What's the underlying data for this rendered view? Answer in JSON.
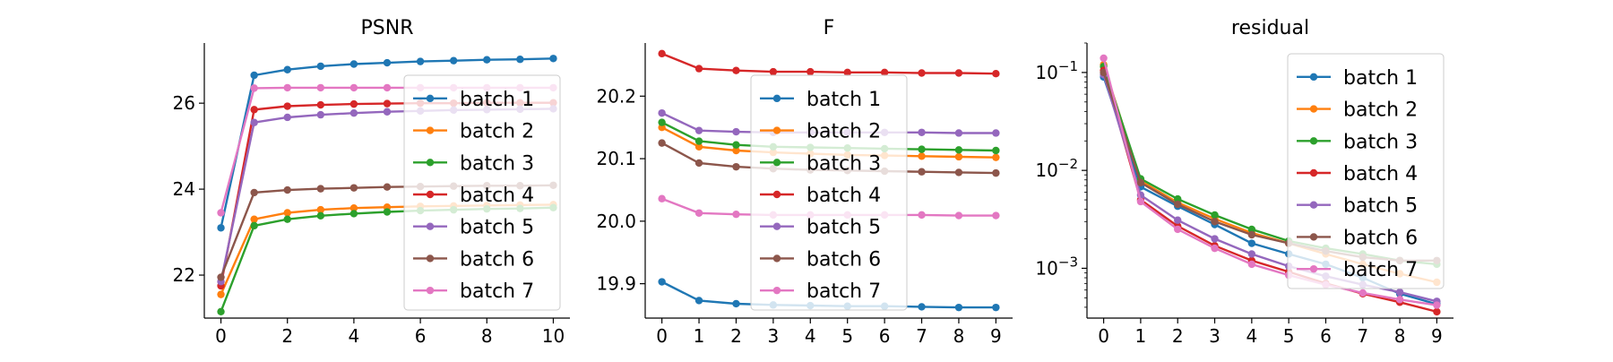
{
  "chart_data": [
    {
      "type": "line",
      "title": "PSNR",
      "xlabel": "",
      "ylabel": "",
      "xlim": [
        -0.5,
        10.5
      ],
      "ylim": [
        21.0,
        27.4
      ],
      "yscale": "linear",
      "xticks": [
        0,
        2,
        4,
        6,
        8,
        10
      ],
      "yticks": [
        22,
        24,
        26
      ],
      "ytick_labels": [
        "22",
        "24",
        "26"
      ],
      "legend": "right",
      "grid": false,
      "x": [
        0,
        1,
        2,
        3,
        4,
        5,
        6,
        7,
        8,
        9,
        10
      ],
      "series": [
        {
          "name": "batch 1",
          "color": "#1f77b4",
          "values": [
            23.1,
            26.65,
            26.78,
            26.86,
            26.91,
            26.94,
            26.97,
            26.99,
            27.01,
            27.02,
            27.04
          ]
        },
        {
          "name": "batch 2",
          "color": "#ff7f0e",
          "values": [
            21.55,
            23.3,
            23.45,
            23.52,
            23.56,
            23.58,
            23.6,
            23.61,
            23.62,
            23.63,
            23.64
          ]
        },
        {
          "name": "batch 3",
          "color": "#2ca02c",
          "values": [
            21.15,
            23.15,
            23.3,
            23.38,
            23.43,
            23.47,
            23.5,
            23.52,
            23.54,
            23.55,
            23.57
          ]
        },
        {
          "name": "batch 4",
          "color": "#d62728",
          "values": [
            21.75,
            25.85,
            25.93,
            25.96,
            25.98,
            25.99,
            26.0,
            26.0,
            26.01,
            26.01,
            26.01
          ]
        },
        {
          "name": "batch 5",
          "color": "#9467bd",
          "values": [
            21.85,
            25.55,
            25.67,
            25.73,
            25.77,
            25.8,
            25.82,
            25.84,
            25.85,
            25.86,
            25.87
          ]
        },
        {
          "name": "batch 6",
          "color": "#8c564b",
          "values": [
            21.95,
            23.92,
            23.98,
            24.01,
            24.03,
            24.05,
            24.06,
            24.07,
            24.08,
            24.08,
            24.09
          ]
        },
        {
          "name": "batch 7",
          "color": "#e377c2",
          "values": [
            23.45,
            26.35,
            26.36,
            26.36,
            26.36,
            26.36,
            26.36,
            26.36,
            26.36,
            26.36,
            26.36
          ]
        }
      ]
    },
    {
      "type": "line",
      "title": "F",
      "xlabel": "",
      "ylabel": "",
      "xlim": [
        -0.45,
        9.45
      ],
      "ylim": [
        19.845,
        20.285
      ],
      "yscale": "linear",
      "xticks": [
        0,
        1,
        2,
        3,
        4,
        5,
        6,
        7,
        8,
        9
      ],
      "yticks": [
        19.9,
        20.0,
        20.1,
        20.2
      ],
      "ytick_labels": [
        "19.9",
        "20.0",
        "20.1",
        "20.2"
      ],
      "legend": "center",
      "grid": false,
      "x": [
        0,
        1,
        2,
        3,
        4,
        5,
        6,
        7,
        8,
        9
      ],
      "series": [
        {
          "name": "batch 1",
          "color": "#1f77b4",
          "values": [
            19.903,
            19.873,
            19.868,
            19.866,
            19.865,
            19.864,
            19.864,
            19.863,
            19.862,
            19.862
          ]
        },
        {
          "name": "batch 2",
          "color": "#ff7f0e",
          "values": [
            20.15,
            20.119,
            20.113,
            20.11,
            20.108,
            20.106,
            20.105,
            20.104,
            20.103,
            20.102
          ]
        },
        {
          "name": "batch 3",
          "color": "#2ca02c",
          "values": [
            20.158,
            20.128,
            20.122,
            20.119,
            20.118,
            20.117,
            20.116,
            20.115,
            20.114,
            20.113
          ]
        },
        {
          "name": "batch 4",
          "color": "#d62728",
          "values": [
            20.268,
            20.244,
            20.241,
            20.239,
            20.239,
            20.238,
            20.238,
            20.237,
            20.237,
            20.236
          ]
        },
        {
          "name": "batch 5",
          "color": "#9467bd",
          "values": [
            20.173,
            20.145,
            20.143,
            20.142,
            20.142,
            20.142,
            20.142,
            20.142,
            20.141,
            20.141
          ]
        },
        {
          "name": "batch 6",
          "color": "#8c564b",
          "values": [
            20.125,
            20.093,
            20.087,
            20.084,
            20.082,
            20.081,
            20.08,
            20.079,
            20.078,
            20.077
          ]
        },
        {
          "name": "batch 7",
          "color": "#e377c2",
          "values": [
            20.036,
            20.013,
            20.011,
            20.01,
            20.01,
            20.01,
            20.01,
            20.01,
            20.009,
            20.009
          ]
        }
      ]
    },
    {
      "type": "line",
      "title": "residual",
      "xlabel": "",
      "ylabel": "",
      "xlim": [
        -0.45,
        9.45
      ],
      "ylim": [
        0.00031,
        0.2
      ],
      "yscale": "log",
      "xticks": [
        0,
        1,
        2,
        3,
        4,
        5,
        6,
        7,
        8,
        9
      ],
      "yticks": [
        0.001,
        0.01,
        0.1
      ],
      "ytick_base": "10",
      "ytick_exponents": [
        "−3",
        "−2",
        "−1"
      ],
      "legend": "upper right",
      "grid": false,
      "x": [
        0,
        1,
        2,
        3,
        4,
        5,
        6,
        7,
        8,
        9
      ],
      "series": [
        {
          "name": "batch 1",
          "color": "#1f77b4",
          "values": [
            0.09,
            0.0068,
            0.0043,
            0.0028,
            0.0018,
            0.0014,
            0.0011,
            0.0008,
            0.00055,
            0.00043
          ]
        },
        {
          "name": "batch 2",
          "color": "#ff7f0e",
          "values": [
            0.12,
            0.0078,
            0.0047,
            0.0032,
            0.0023,
            0.0018,
            0.0014,
            0.0011,
            0.00088,
            0.00072
          ]
        },
        {
          "name": "batch 3",
          "color": "#2ca02c",
          "values": [
            0.115,
            0.0082,
            0.0051,
            0.0035,
            0.0025,
            0.0019,
            0.0016,
            0.0014,
            0.0012,
            0.0011
          ]
        },
        {
          "name": "batch 4",
          "color": "#d62728",
          "values": [
            0.105,
            0.005,
            0.0027,
            0.0017,
            0.0012,
            0.00092,
            0.0007,
            0.00055,
            0.00045,
            0.00036
          ]
        },
        {
          "name": "batch 5",
          "color": "#9467bd",
          "values": [
            0.095,
            0.0056,
            0.0031,
            0.002,
            0.0014,
            0.00105,
            0.00083,
            0.00068,
            0.00057,
            0.00046
          ]
        },
        {
          "name": "batch 6",
          "color": "#8c564b",
          "values": [
            0.1,
            0.0075,
            0.0045,
            0.003,
            0.0022,
            0.0018,
            0.0015,
            0.0013,
            0.0012,
            0.0012
          ]
        },
        {
          "name": "batch 7",
          "color": "#e377c2",
          "values": [
            0.14,
            0.0048,
            0.0025,
            0.0016,
            0.0011,
            0.00085,
            0.00068,
            0.00056,
            0.00048,
            0.00042
          ]
        }
      ]
    }
  ]
}
